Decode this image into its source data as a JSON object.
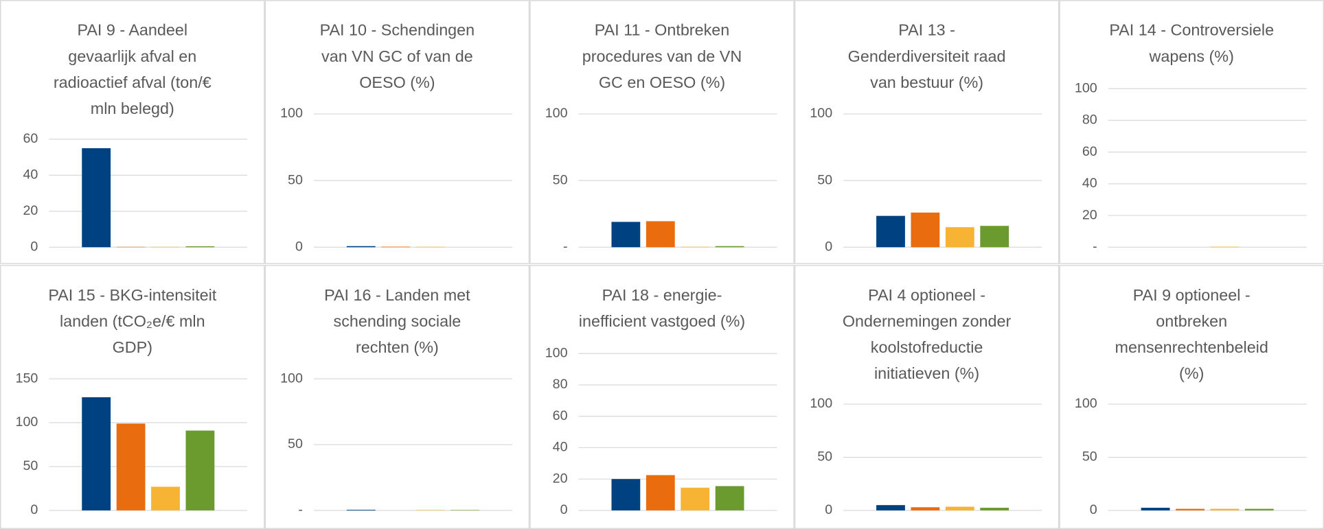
{
  "chart_data": [
    {
      "type": "bar",
      "title": [
        "PAI 9 - Aandeel",
        "gevaarlijk afval en",
        "radioactief afval (ton/€",
        "mln belegd)"
      ],
      "categories": [
        null,
        null,
        null,
        null
      ],
      "values": [
        55,
        0.2,
        0.2,
        0.5
      ],
      "colors": [
        "#004181",
        "#e96c0f",
        "#f6b334",
        "#6b9b2e"
      ],
      "ylim": [
        0,
        60
      ],
      "yticks": [
        0,
        20,
        40,
        60
      ],
      "grid": true
    },
    {
      "type": "bar",
      "title": [
        "PAI 10 - Schendingen",
        "van VN GC of van de",
        "OESO (%)"
      ],
      "categories": [
        null,
        null,
        null,
        null
      ],
      "values": [
        0.8,
        0.4,
        0.3,
        0
      ],
      "colors": [
        "#004181",
        "#e96c0f",
        "#f6b334",
        "#6b9b2e"
      ],
      "ylim": [
        0,
        100
      ],
      "yticks": [
        0,
        50,
        100
      ],
      "grid": true
    },
    {
      "type": "bar",
      "title": [
        "PAI 11 - Ontbreken",
        "procedures van de VN",
        "GC en OESO (%)"
      ],
      "categories": [
        null,
        null,
        null,
        null
      ],
      "values": [
        19,
        19.5,
        0.3,
        0.8
      ],
      "colors": [
        "#004181",
        "#e96c0f",
        "#f6b334",
        "#6b9b2e"
      ],
      "ylim": [
        0,
        100
      ],
      "yticks": [
        {
          "value": 0,
          "label": "-"
        },
        50,
        100
      ],
      "grid": true
    },
    {
      "type": "bar",
      "title": [
        "PAI 13 -",
        "Genderdiversiteit raad",
        "van bestuur (%)"
      ],
      "categories": [
        null,
        null,
        null,
        null
      ],
      "values": [
        23.5,
        26,
        15,
        16
      ],
      "colors": [
        "#004181",
        "#e96c0f",
        "#f6b334",
        "#6b9b2e"
      ],
      "ylim": [
        0,
        100
      ],
      "yticks": [
        0,
        50,
        100
      ],
      "grid": true
    },
    {
      "type": "bar",
      "title": [
        "PAI 14 - Controversiele",
        "wapens (%)"
      ],
      "categories": [
        null,
        null,
        null,
        null
      ],
      "values": [
        0,
        0,
        0.3,
        0
      ],
      "colors": [
        "#004181",
        "#e96c0f",
        "#f6b334",
        "#6b9b2e"
      ],
      "ylim": [
        0,
        100
      ],
      "yticks": [
        {
          "value": 0,
          "label": "-"
        },
        20,
        40,
        60,
        80,
        100
      ],
      "grid": true
    },
    {
      "type": "bar",
      "title": [
        "PAI 15 - BKG-intensiteit",
        "landen (tCO₂e/€ mln",
        "GDP)"
      ],
      "categories": [
        null,
        null,
        null,
        null
      ],
      "values": [
        129,
        99,
        27,
        91
      ],
      "colors": [
        "#004181",
        "#e96c0f",
        "#f6b334",
        "#6b9b2e"
      ],
      "ylim": [
        0,
        150
      ],
      "yticks": [
        0,
        50,
        100,
        150
      ],
      "grid": true
    },
    {
      "type": "bar",
      "title": [
        "PAI 16 - Landen met",
        "schending sociale",
        "rechten (%)"
      ],
      "categories": [
        null,
        null,
        null,
        null
      ],
      "values": [
        0.5,
        0,
        0.3,
        0.3
      ],
      "colors": [
        "#004181",
        "#e96c0f",
        "#f6b334",
        "#6b9b2e"
      ],
      "ylim": [
        0,
        100
      ],
      "yticks": [
        {
          "value": 0,
          "label": "-"
        },
        50,
        100
      ],
      "grid": true
    },
    {
      "type": "bar",
      "title": [
        "PAI 18 - energie-",
        "inefficient vastgoed (%)"
      ],
      "categories": [
        null,
        null,
        null,
        null
      ],
      "values": [
        20,
        22.5,
        14.5,
        15.5
      ],
      "colors": [
        "#004181",
        "#e96c0f",
        "#f6b334",
        "#6b9b2e"
      ],
      "ylim": [
        0,
        100
      ],
      "yticks": [
        0,
        20,
        40,
        60,
        80,
        100
      ],
      "grid": true
    },
    {
      "type": "bar",
      "title": [
        "PAI 4 optioneel -",
        "Ondernemingen zonder",
        "koolstofreductie",
        "initiatieven (%)"
      ],
      "categories": [
        null,
        null,
        null,
        null
      ],
      "values": [
        5,
        3,
        3.5,
        2.5
      ],
      "colors": [
        "#004181",
        "#e96c0f",
        "#f6b334",
        "#6b9b2e"
      ],
      "ylim": [
        0,
        100
      ],
      "yticks": [
        0,
        50,
        100
      ],
      "grid": true
    },
    {
      "type": "bar",
      "title": [
        "PAI 9 optioneel -",
        "ontbreken",
        "mensenrechtenbeleid",
        "(%)"
      ],
      "categories": [
        null,
        null,
        null,
        null
      ],
      "values": [
        2.5,
        1.5,
        1.5,
        1.5
      ],
      "colors": [
        "#004181",
        "#e96c0f",
        "#f6b334",
        "#6b9b2e"
      ],
      "ylim": [
        0,
        100
      ],
      "yticks": [
        0,
        50,
        100
      ],
      "grid": true
    }
  ]
}
